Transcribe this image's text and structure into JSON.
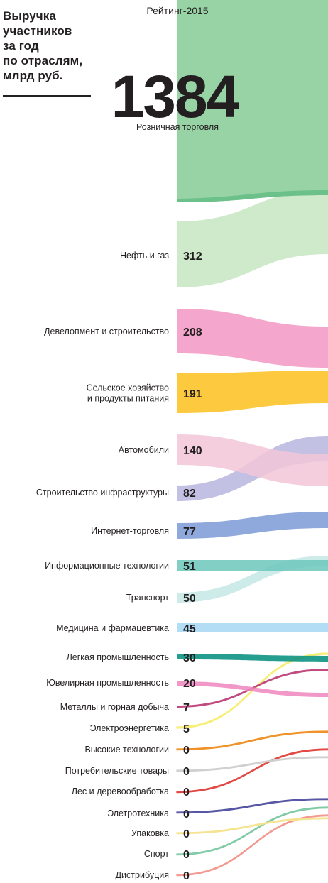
{
  "header": {
    "title": "Выручка\nучастников\nза год\nпо отраслям,\nмлрд руб.",
    "rating_label": "Рейтинг-2015"
  },
  "chart_data": {
    "type": "bar",
    "title": "Выручка участников за год по отраслям, млрд руб.",
    "subtitle": "Рейтинг-2015",
    "categories": [
      "Розничная торговля",
      "Нефть и газ",
      "Девелопмент и строительство",
      "Сельское хозяйство\nи продукты питания",
      "Автомобили",
      "Строительство инфраструктуры",
      "Интернет-торговля",
      "Информационные технологии",
      "Транспорт",
      "Медицина и фармацевтика",
      "Легкая промышленность",
      "Ювелирная промышленность",
      "Металлы и горная добыча",
      "Электроэнергетика",
      "Высокие технологии",
      "Потребительские товары",
      "Лес и деревообработка",
      "Элетротехника",
      "Упаковка",
      "Спорт",
      "Дистрибуция"
    ],
    "values": [
      1384,
      312,
      208,
      191,
      140,
      82,
      77,
      51,
      50,
      45,
      30,
      20,
      7,
      5,
      0,
      0,
      0,
      0,
      0,
      0,
      0
    ],
    "colors": [
      "#97d3a5",
      "#c7e5c2",
      "#f396c3",
      "#fcc01d",
      "#f2c5d7",
      "#b7b5de",
      "#7d9ad6",
      "#6cc7bc",
      "#c4e7e5",
      "#a5d7f2",
      "#008d7b",
      "#ee86be",
      "#b62c6a",
      "#f7ee73",
      "#ef8f22",
      "#cfcfcf",
      "#e0443f",
      "#5252a2",
      "#f5e38e",
      "#7ec9a4",
      "#f2988f"
    ],
    "dark_edge_colors": [
      "#6cc08a"
    ],
    "xlabel": "",
    "ylabel": ""
  }
}
